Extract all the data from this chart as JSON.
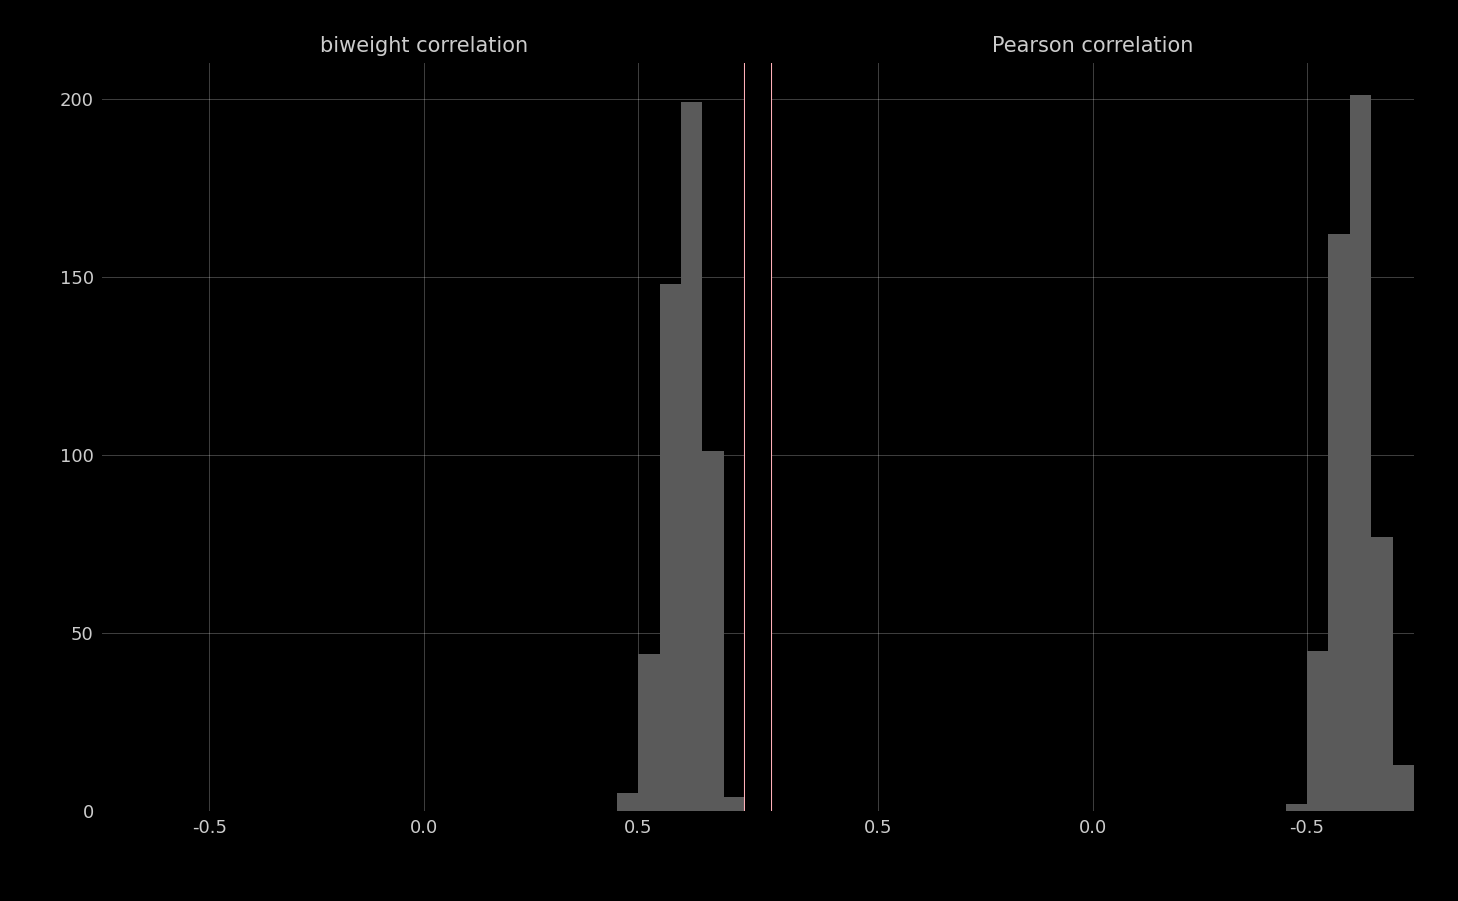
{
  "background_color": "#000000",
  "bar_color": "#5a5a5a",
  "vline_color": "#ffb0b8",
  "population_corr": 0.75,
  "subplot_titles": [
    "biweight correlation",
    "Pearson correlation"
  ],
  "title_fontsize": 15,
  "title_color": "#cccccc",
  "tick_color": "#cccccc",
  "tick_fontsize": 13,
  "grid_color": "#ffffff",
  "grid_alpha": 0.25,
  "ylim": [
    0,
    210
  ],
  "yticks": [
    0,
    50,
    100,
    150,
    200
  ],
  "biweight_bin_edges": [
    0.45,
    0.5,
    0.55,
    0.6,
    0.65,
    0.7,
    0.75,
    0.8
  ],
  "biweight_counts": [
    5,
    44,
    148,
    199,
    101,
    4,
    0
  ],
  "pearson_bin_edges": [
    -0.75,
    -0.7,
    -0.65,
    -0.6,
    -0.55,
    -0.5,
    -0.45
  ],
  "pearson_counts": [
    13,
    77,
    201,
    162,
    45,
    2
  ],
  "biweight_xlim": [
    -0.75,
    0.75
  ],
  "pearson_xlim": [
    0.75,
    -0.75
  ],
  "xtick_vals": [
    -0.5,
    0.0,
    0.5
  ],
  "figsize": [
    14.58,
    9.01
  ],
  "dpi": 100
}
